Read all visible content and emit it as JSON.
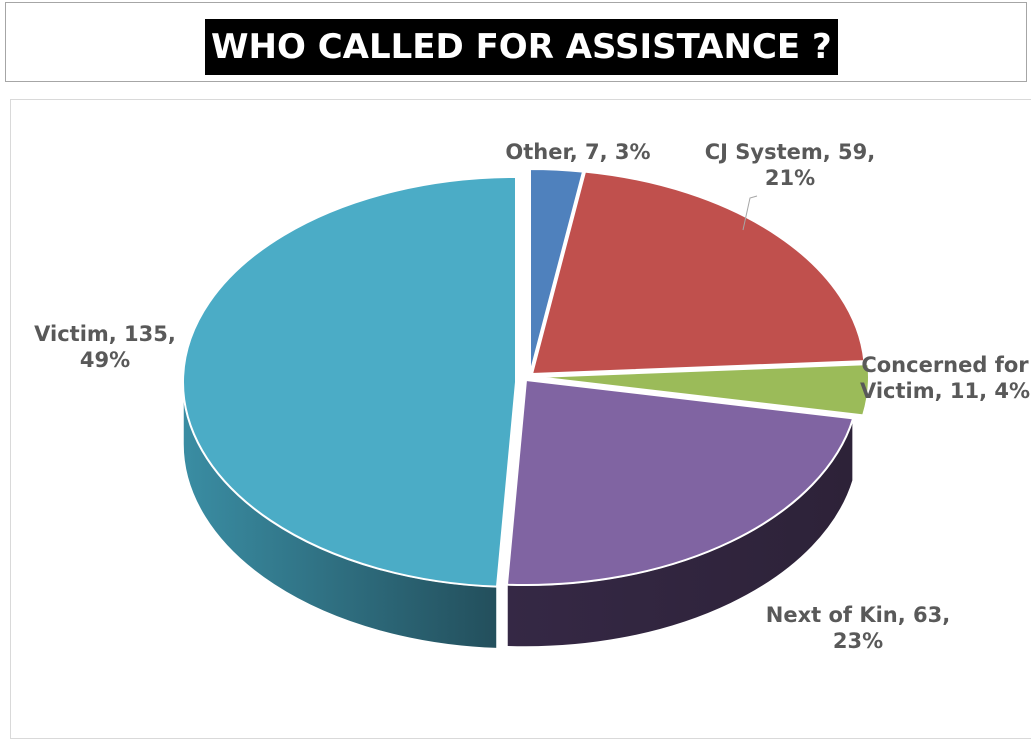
{
  "header": {
    "title": "WHO CALLED FOR ASSISTANCE ?"
  },
  "chart_data": {
    "type": "pie",
    "title": "WHO CALLED FOR ASSISTANCE ?",
    "three_d": true,
    "slices": [
      {
        "name": "Other",
        "value": 7,
        "percent": 3,
        "color": "#4f81bd",
        "label_lines": [
          "Other, 7, 3%"
        ]
      },
      {
        "name": "CJ System",
        "value": 59,
        "percent": 21,
        "color": "#c0504d",
        "label_lines": [
          "CJ System, 59,",
          "21%"
        ]
      },
      {
        "name": "Concerned for Victim",
        "value": 11,
        "percent": 4,
        "color": "#9bbb59",
        "label_lines": [
          "Concerned for",
          "Victim, 11, 4%"
        ]
      },
      {
        "name": "Next of Kin",
        "value": 63,
        "percent": 23,
        "color": "#8064a2",
        "label_lines": [
          "Next of Kin, 63,",
          "23%"
        ]
      },
      {
        "name": "Victim",
        "value": 135,
        "percent": 49,
        "color": "#4bacc6",
        "label_lines": [
          "Victim, 135,",
          "49%"
        ]
      }
    ],
    "legend": "none",
    "data_labels": "category, value, percentage"
  }
}
